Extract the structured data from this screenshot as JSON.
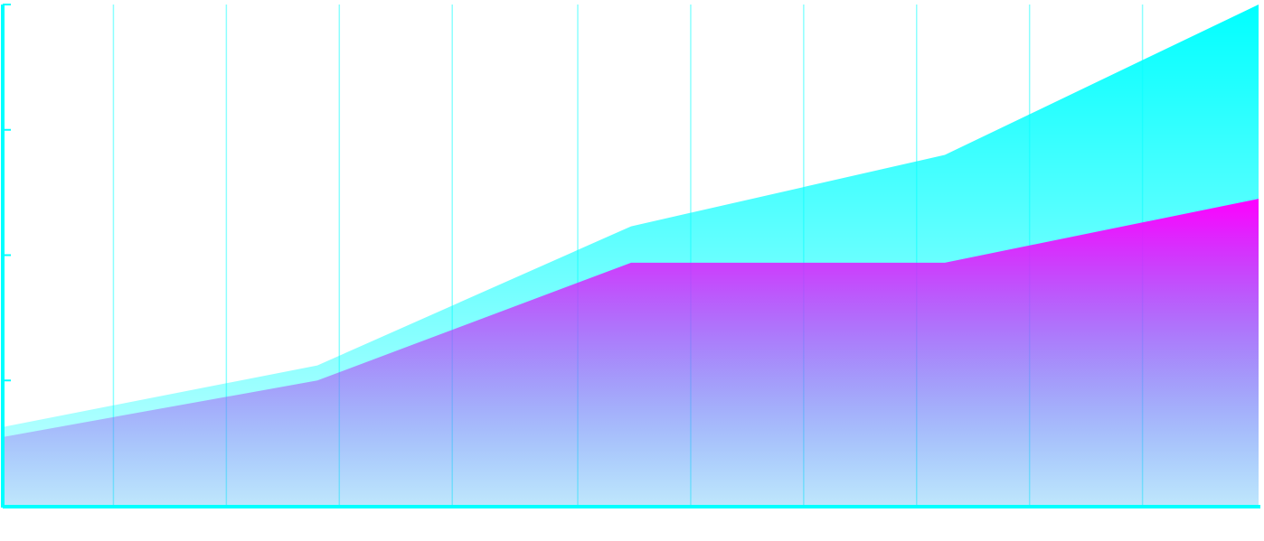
{
  "chart_data": {
    "type": "area",
    "x": [
      0,
      1,
      2,
      3,
      4
    ],
    "xlim": [
      0,
      4
    ],
    "xticks": [
      0.35,
      0.71,
      1.07,
      1.43,
      1.83,
      2.19,
      2.55,
      2.91,
      3.27,
      3.63
    ],
    "ylim": [
      0,
      4
    ],
    "yticks": [
      0,
      1,
      2,
      3,
      4
    ],
    "grid": true,
    "axis_color": "#00ffff",
    "series": [
      {
        "color": "#00ffff",
        "values": [
          0.63,
          1.12,
          2.23,
          2.8,
          4.0
        ]
      },
      {
        "color": "#ff00ff",
        "values": [
          0.55,
          1.0,
          1.94,
          1.94,
          2.45
        ]
      }
    ]
  }
}
